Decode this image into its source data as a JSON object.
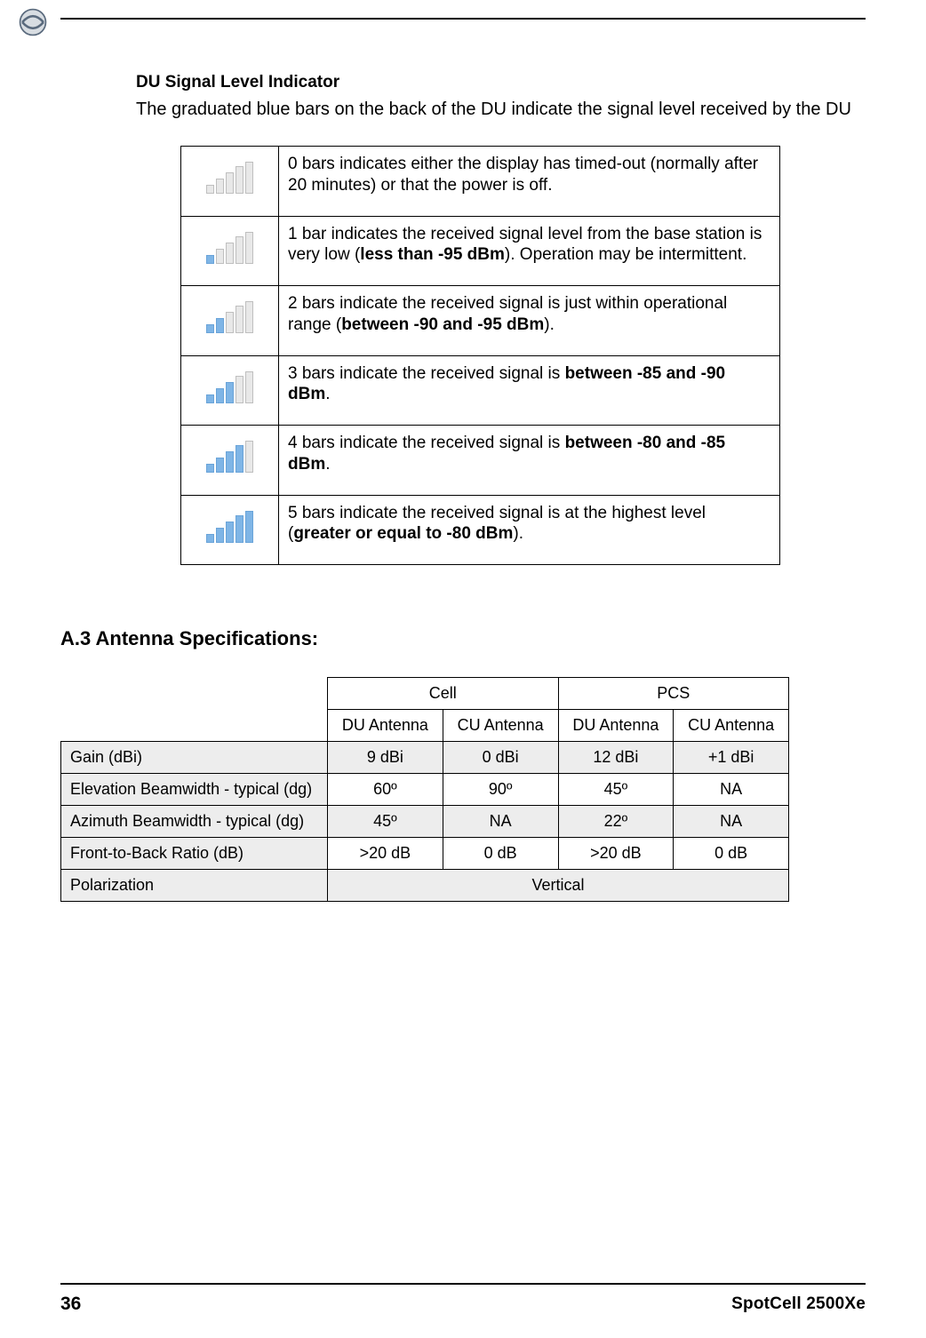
{
  "header": {
    "rule_color": "#000000"
  },
  "du_signal": {
    "heading": "DU Signal Level Indicator",
    "intro": "The graduated blue bars on the back of the DU indicate the signal level received by the DU",
    "rows": [
      {
        "active_bars": 0,
        "text_before": "0 bars indicates either the display has timed-out (normally after 20 minutes) or that the power is off.",
        "bold": "",
        "text_after": ""
      },
      {
        "active_bars": 1,
        "text_before": "1 bar indicates the received signal level from the base station is very low (",
        "bold": "less than -95 dBm",
        "text_after": "). Operation may be intermittent."
      },
      {
        "active_bars": 2,
        "text_before": "2 bars indicate the received signal is just within operational range (",
        "bold": "between -90 and -95 dBm",
        "text_after": ")."
      },
      {
        "active_bars": 3,
        "text_before": "3 bars indicate the received signal is ",
        "bold": "between -85 and -90 dBm",
        "text_after": "."
      },
      {
        "active_bars": 4,
        "text_before": "4 bars indicate the received signal is ",
        "bold": "between -80 and -85 dBm",
        "text_after": "."
      },
      {
        "active_bars": 5,
        "text_before": "5 bars indicate the received signal is at the highest level (",
        "bold": "greater or equal to -80 dBm",
        "text_after": ")."
      }
    ],
    "bar_active_color": "#7fb5e6",
    "bar_inactive_color": "#e8e8e8"
  },
  "antenna": {
    "heading": "A.3 Antenna Specifications:",
    "group_headers": [
      "Cell",
      "PCS"
    ],
    "sub_headers": [
      "DU Antenna",
      "CU Antenna",
      "DU Antenna",
      "CU Antenna"
    ],
    "rows": [
      {
        "shaded": true,
        "label": "Gain (dBi)",
        "cells": [
          "9 dBi",
          "0 dBi",
          "12 dBi",
          "+1 dBi"
        ]
      },
      {
        "shaded": false,
        "label": "Elevation Beamwidth - typical (dg)",
        "cells": [
          "60º",
          "90º",
          "45º",
          "NA"
        ]
      },
      {
        "shaded": true,
        "label": "Azimuth Beamwidth - typical (dg)",
        "cells": [
          "45º",
          "NA",
          "22º",
          "NA"
        ]
      },
      {
        "shaded": false,
        "label": "Front-to-Back Ratio (dB)",
        "cells": [
          ">20 dB",
          "0 dB",
          ">20 dB",
          "0 dB"
        ]
      },
      {
        "shaded": true,
        "label": "Polarization",
        "merged": "Vertical"
      }
    ],
    "shade_color": "#ededed"
  },
  "footer": {
    "page_number": "36",
    "product": "SpotCell 2500Xe"
  }
}
